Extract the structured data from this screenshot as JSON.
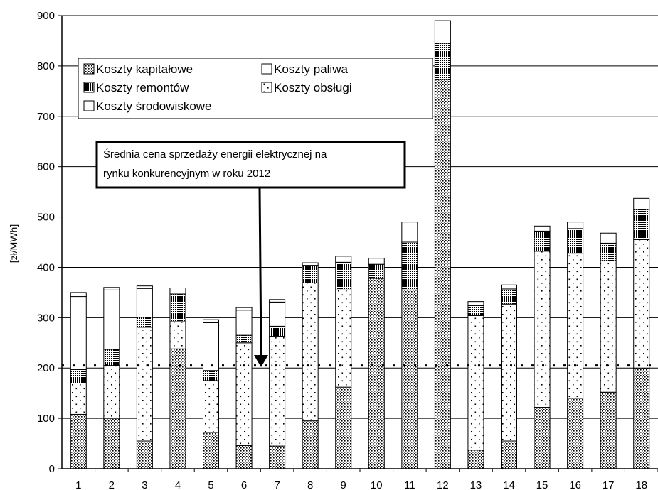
{
  "chart_data": {
    "type": "bar",
    "stacked": true,
    "ylabel": "[zł/MWh]",
    "ylim": [
      0,
      900
    ],
    "yticks": [
      0,
      100,
      200,
      300,
      400,
      500,
      600,
      700,
      800,
      900
    ],
    "grid": true,
    "legend_position": "top-left",
    "categories": [
      "1",
      "2",
      "3",
      "4",
      "5",
      "6",
      "7",
      "8",
      "9",
      "10",
      "11",
      "12",
      "13",
      "14",
      "15",
      "16",
      "17",
      "18"
    ],
    "series": [
      {
        "name": "Koszty kapitałowe",
        "pattern": "dense-dots",
        "values": [
          108,
          100,
          55,
          238,
          72,
          46,
          45,
          95,
          162,
          378,
          355,
          773,
          37,
          55,
          122,
          140,
          152,
          200
        ]
      },
      {
        "name": "Koszty obsługi",
        "pattern": "sparse-dots",
        "values": [
          62,
          105,
          226,
          54,
          103,
          204,
          218,
          274,
          193,
          0,
          0,
          0,
          267,
          272,
          310,
          287,
          261,
          255
        ]
      },
      {
        "name": "Koszty remontów",
        "pattern": "crosshatch",
        "values": [
          27,
          32,
          20,
          55,
          20,
          15,
          20,
          35,
          55,
          28,
          95,
          72,
          20,
          30,
          40,
          50,
          35,
          60
        ]
      },
      {
        "name": "Koszty paliwa",
        "pattern": "white",
        "values": [
          145,
          118,
          57,
          0,
          95,
          50,
          48,
          0,
          0,
          0,
          0,
          0,
          0,
          0,
          0,
          0,
          0,
          0
        ]
      },
      {
        "name": "Koszty środowiskowe",
        "pattern": "white",
        "values": [
          8,
          5,
          5,
          12,
          6,
          5,
          5,
          5,
          12,
          12,
          40,
          45,
          8,
          8,
          10,
          13,
          20,
          22
        ]
      }
    ],
    "reference_line": {
      "value": 205,
      "label": "Średnia cena sprzedaży energii elektrycznej na rynku konkurencyjnym w roku 2012"
    },
    "legend_rows": [
      [
        "Koszty kapitałowe",
        "Koszty paliwa"
      ],
      [
        "Koszty remontów",
        "Koszty obsługi"
      ],
      [
        "Koszty środowiskowe"
      ]
    ]
  },
  "annotation": {
    "line1": "Średnia cena sprzedaży energii elektrycznej na",
    "line2": "rynku konkurencyjnym w roku 2012"
  }
}
